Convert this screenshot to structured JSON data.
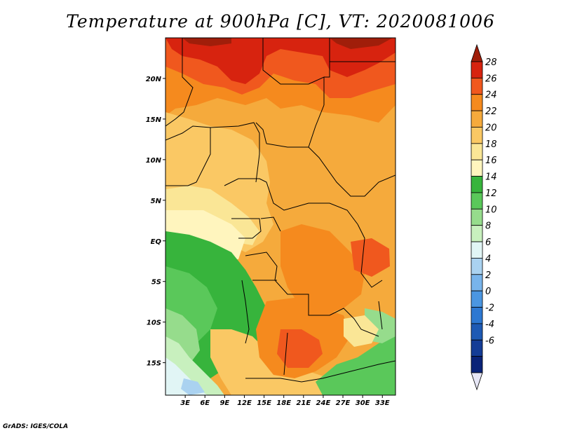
{
  "title": "Temperature at 900hPa [C], VT: 2020081006",
  "credit": "GrADS: IGES/COLA",
  "map": {
    "lat_range": [
      -19,
      25
    ],
    "lon_range": [
      0,
      35
    ],
    "lat_ticks": [
      {
        "value": 20,
        "label": "20N"
      },
      {
        "value": 15,
        "label": "15N"
      },
      {
        "value": 10,
        "label": "10N"
      },
      {
        "value": 5,
        "label": "5N"
      },
      {
        "value": 0,
        "label": "EQ"
      },
      {
        "value": -5,
        "label": "5S"
      },
      {
        "value": -10,
        "label": "10S"
      },
      {
        "value": -15,
        "label": "15S"
      }
    ],
    "lon_ticks": [
      {
        "value": 3,
        "label": "3E"
      },
      {
        "value": 6,
        "label": "6E"
      },
      {
        "value": 9,
        "label": "9E"
      },
      {
        "value": 12,
        "label": "12E"
      },
      {
        "value": 15,
        "label": "15E"
      },
      {
        "value": 18,
        "label": "18E"
      },
      {
        "value": 21,
        "label": "21E"
      },
      {
        "value": 24,
        "label": "24E"
      },
      {
        "value": 27,
        "label": "27E"
      },
      {
        "value": 30,
        "label": "30E"
      },
      {
        "value": 33,
        "label": "33E"
      }
    ]
  },
  "colorbar": {
    "levels": [
      "28",
      "26",
      "24",
      "22",
      "20",
      "18",
      "16",
      "14",
      "12",
      "10",
      "8",
      "6",
      "4",
      "2",
      "0",
      "-2",
      "-4",
      "-6"
    ],
    "colors": [
      "#a01e0a",
      "#d7230f",
      "#f0581e",
      "#f58a1e",
      "#f5aa3c",
      "#fac864",
      "#fae696",
      "#fff5be",
      "#37b43c",
      "#5ac85a",
      "#96dc8c",
      "#c8f0be",
      "#e1f5f5",
      "#aad2f0",
      "#78b4eb",
      "#4b96e1",
      "#2d78d2",
      "#1e5ab4",
      "#143c96",
      "#0a2378",
      "#e6e6f5"
    ]
  }
}
